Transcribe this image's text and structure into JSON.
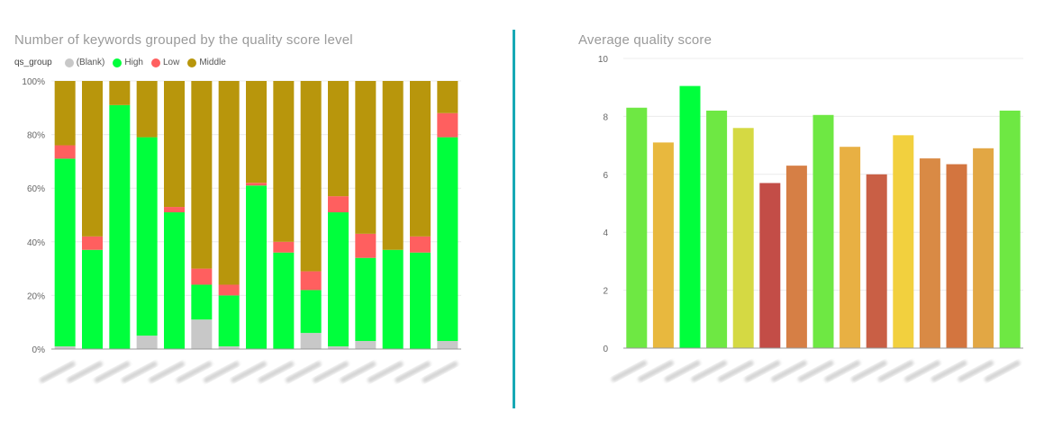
{
  "chart_data": [
    {
      "type": "bar",
      "stacked": true,
      "normalized": true,
      "title": "Number of keywords grouped by the quality score level",
      "legend_title": "qs_group",
      "legend_position": "top-left",
      "categories": [
        "",
        "",
        "",
        "",
        "",
        "",
        "",
        "",
        "",
        "",
        "",
        "",
        "",
        "",
        ""
      ],
      "yticks": [
        "0%",
        "20%",
        "40%",
        "60%",
        "80%",
        "100%"
      ],
      "ylim": [
        0,
        100
      ],
      "grid": true,
      "series": [
        {
          "name": "(Blank)",
          "color": "#c8c8c8",
          "values": [
            1,
            0,
            0,
            5,
            0,
            11,
            1,
            0,
            0,
            6,
            1,
            3,
            0,
            0,
            3
          ]
        },
        {
          "name": "High",
          "color": "#00ff3c",
          "values": [
            70,
            37,
            91,
            74,
            51,
            13,
            19,
            61,
            36,
            16,
            50,
            31,
            37,
            36,
            76
          ]
        },
        {
          "name": "Low",
          "color": "#ff5f5f",
          "values": [
            5,
            5,
            0,
            0,
            2,
            6,
            4,
            1,
            4,
            7,
            6,
            9,
            0,
            6,
            9
          ]
        },
        {
          "name": "Middle",
          "color": "#b8960c",
          "values": [
            24,
            58,
            9,
            21,
            47,
            70,
            76,
            38,
            60,
            71,
            43,
            57,
            63,
            58,
            12
          ]
        }
      ]
    },
    {
      "type": "bar",
      "title": "Average quality score",
      "categories": [
        "",
        "",
        "",
        "",
        "",
        "",
        "",
        "",
        "",
        "",
        "",
        "",
        "",
        "",
        ""
      ],
      "yticks": [
        "0",
        "2",
        "4",
        "6",
        "8",
        "10"
      ],
      "ylim": [
        0,
        10
      ],
      "grid": true,
      "values": [
        8.3,
        7.1,
        9.05,
        8.2,
        7.6,
        5.7,
        6.3,
        8.05,
        6.95,
        6.0,
        7.35,
        6.55,
        6.35,
        6.9,
        8.2
      ],
      "colors": [
        "#6ee843",
        "#e8b83e",
        "#00ff3c",
        "#6ee843",
        "#d5d943",
        "#c34d47",
        "#d67f45",
        "#6ee843",
        "#e8b043",
        "#c95f45",
        "#f2d03e",
        "#d98a45",
        "#d3753f",
        "#e2a744",
        "#6ee843"
      ]
    }
  ]
}
